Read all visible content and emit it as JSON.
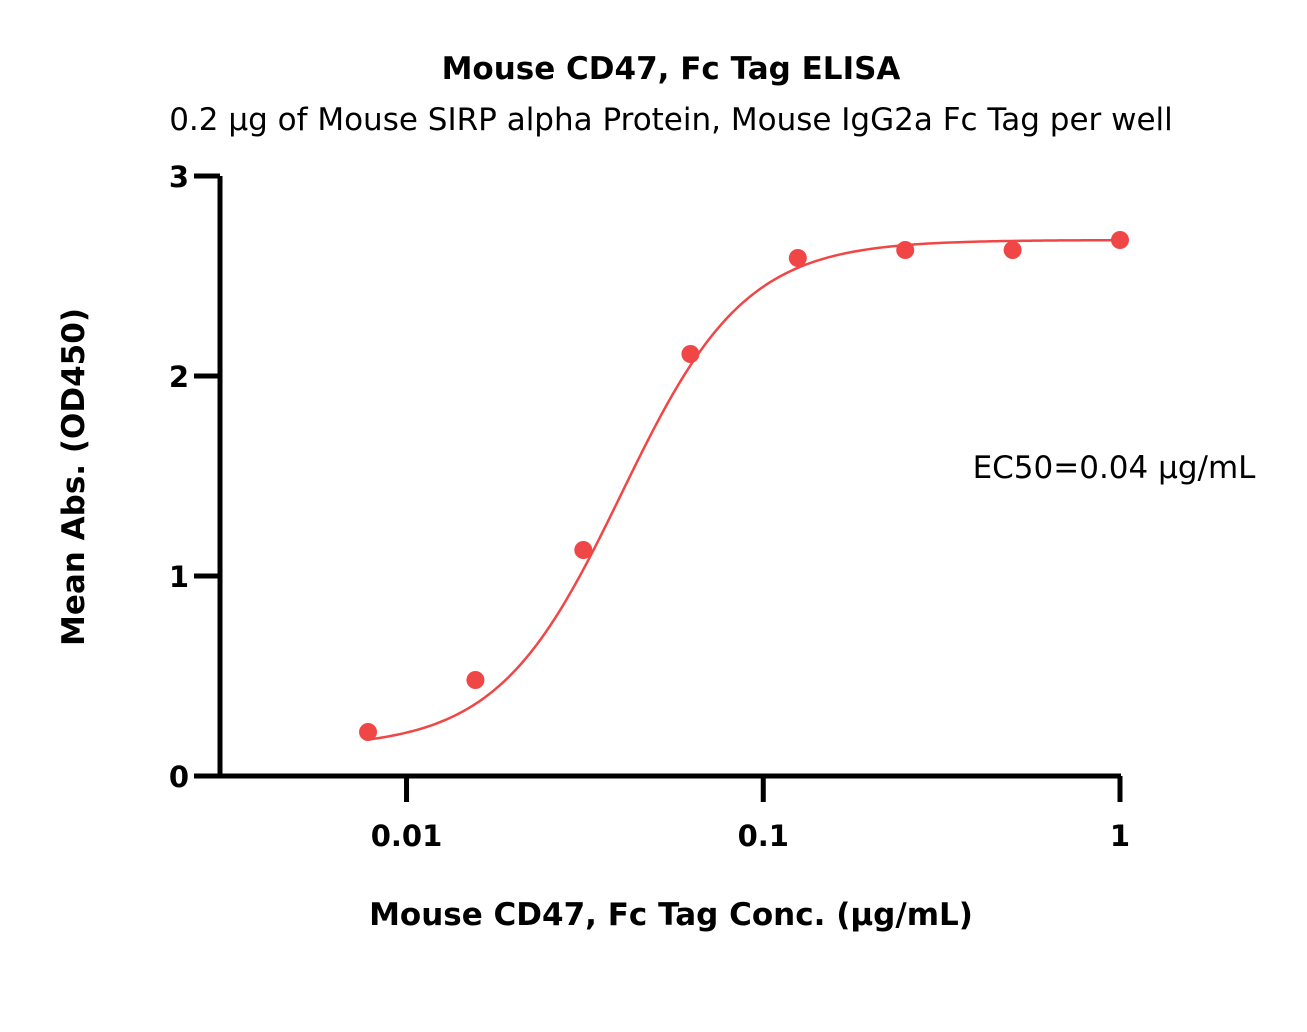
{
  "chart_data": {
    "type": "scatter",
    "title": "Mouse CD47, Fc Tag ELISA",
    "subtitle": "0.2 μg of Mouse SIRP alpha Protein, Mouse IgG2a Fc Tag per well",
    "xlabel": "Mouse CD47, Fc Tag Conc. (μg/mL)",
    "ylabel": "Mean Abs. (OD450)",
    "xscale": "log",
    "xlim": [
      0.003,
      1
    ],
    "ylim": [
      0,
      3
    ],
    "xticks": [
      0.01,
      0.1,
      1
    ],
    "xtick_labels": [
      "0.01",
      "0.1",
      "1"
    ],
    "yticks": [
      0,
      1,
      2,
      3
    ],
    "ytick_labels": [
      "0",
      "1",
      "2",
      "3"
    ],
    "grid": false,
    "color": "#f04646",
    "series": [
      {
        "x": [
          0.0078,
          0.0156,
          0.0313,
          0.0625,
          0.125,
          0.25,
          0.5,
          1
        ],
        "y": [
          0.22,
          0.48,
          1.13,
          2.11,
          2.59,
          2.63,
          2.63,
          2.68
        ]
      }
    ],
    "fit": {
      "model": "4PL",
      "bottom": 0.14,
      "top": 2.68,
      "ec50": 0.04,
      "hill": 2.5
    },
    "annotation": "EC50=0.04 μg/mL"
  }
}
